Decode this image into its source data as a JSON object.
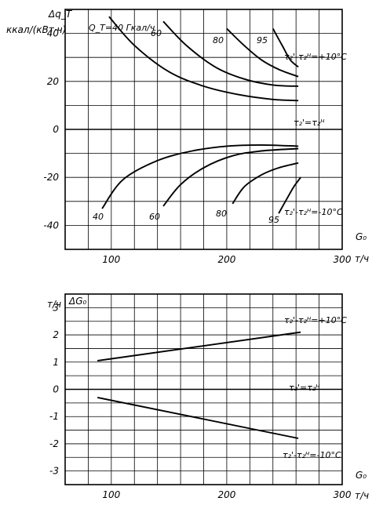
{
  "chart_data": [
    {
      "type": "line",
      "ylabel": "ккал/(кВт·ч)",
      "y_symbol": "Δq_T",
      "xlabel": "G₀",
      "x_unit": "т/ч",
      "xlim": [
        60,
        300
      ],
      "ylim": [
        -50,
        50
      ],
      "xticks": [
        100,
        200,
        300
      ],
      "yticks": [
        -40,
        -20,
        0,
        20,
        40
      ],
      "grid": true,
      "curve_labels": [
        {
          "name": "Q_T=40 Гкал/ч"
        },
        {
          "name": "60"
        },
        {
          "name": "80"
        },
        {
          "name": "95"
        },
        {
          "name": "40"
        },
        {
          "name": "60"
        },
        {
          "name": "80"
        },
        {
          "name": "95"
        }
      ],
      "annotations": [
        "τ₂'-τ₂ᴴ=+10°C",
        "τ₂'=τ₂ᴴ",
        "τ₂'-τ₂ᴴ=-10°C"
      ],
      "series": [
        {
          "x": [
            98,
            120,
            150,
            180,
            210,
            240,
            262
          ],
          "y": [
            47,
            35,
            24,
            18,
            14.5,
            12.5,
            12
          ]
        },
        {
          "x": [
            145,
            165,
            190,
            215,
            240,
            262
          ],
          "y": [
            45,
            35,
            26,
            21,
            18.5,
            18
          ]
        },
        {
          "x": [
            200,
            215,
            230,
            245,
            262
          ],
          "y": [
            42,
            35,
            29,
            25,
            22
          ]
        },
        {
          "x": [
            240,
            248,
            255,
            262
          ],
          "y": [
            42,
            35,
            29,
            26
          ]
        },
        {
          "x": [
            92,
            110,
            140,
            170,
            200,
            230,
            262
          ],
          "y": [
            -33,
            -21,
            -13,
            -9,
            -7,
            -6.5,
            -7
          ]
        },
        {
          "x": [
            145,
            160,
            180,
            205,
            230,
            262
          ],
          "y": [
            -32,
            -23,
            -16,
            -11,
            -9,
            -8
          ]
        },
        {
          "x": [
            205,
            215,
            230,
            245,
            262
          ],
          "y": [
            -31,
            -24,
            -19,
            -16,
            -14
          ]
        },
        {
          "x": [
            245,
            252,
            258,
            264
          ],
          "y": [
            -35,
            -29,
            -24,
            -20
          ]
        }
      ]
    },
    {
      "type": "line",
      "ylabel": "т/ч",
      "y_symbol": "ΔG₀",
      "xlabel": "G₀",
      "x_unit": "т/ч",
      "xlim": [
        60,
        300
      ],
      "ylim": [
        -3.5,
        3.5
      ],
      "xticks": [
        100,
        200,
        300
      ],
      "yticks": [
        -3,
        -2,
        -1,
        0,
        1,
        2,
        3
      ],
      "grid": true,
      "annotations": [
        "τ₂'-τ₂ᴴ=+10°C",
        "τ₂'=τ₂ᴴ",
        "τ₂'-τ₂ᴴ=-10°C"
      ],
      "series": [
        {
          "x": [
            88,
            264
          ],
          "y": [
            1.05,
            2.1
          ]
        },
        {
          "x": [
            88,
            262
          ],
          "y": [
            -0.3,
            -1.8
          ]
        }
      ]
    }
  ]
}
